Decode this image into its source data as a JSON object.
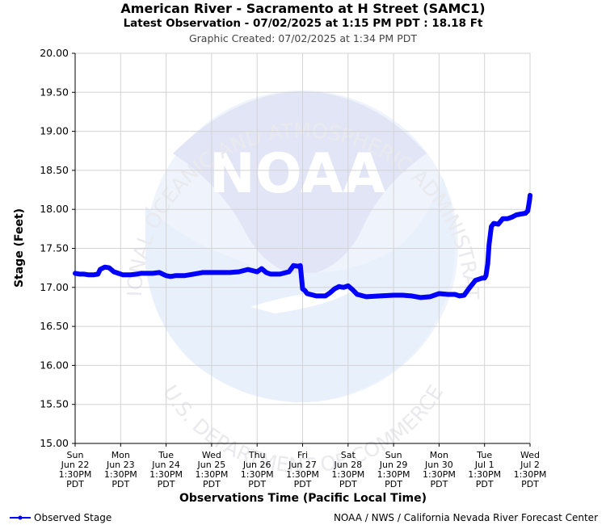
{
  "header": {
    "title": "American River - Sacramento at H Street (SAMC1)",
    "subtitle": "Latest Observation - 07/02/2025 at 1:15 PM PDT : 18.18 Ft",
    "created": "Graphic Created: 07/02/2025 at 1:34 PM PDT"
  },
  "watermark": {
    "logo_text": "NOAA",
    "top_arc": "NATIONAL OCEANIC AND ATMOSPHERIC ADMINISTRATION",
    "bottom_arc": "U.S. DEPARTMENT OF COMMERCE"
  },
  "legend": {
    "label": "Observed Stage",
    "color": "#0000ff"
  },
  "credit": "NOAA / NWS / California Nevada River Forecast Center",
  "chart_data": {
    "type": "line",
    "title": "American River - Sacramento at H Street (SAMC1)",
    "xlabel": "Observations Time (Pacific Local Time)",
    "ylabel": "Stage (Feet)",
    "ylim": [
      15.0,
      20.0
    ],
    "yticks": [
      "15.00",
      "15.50",
      "16.00",
      "16.50",
      "17.00",
      "17.50",
      "18.00",
      "18.50",
      "19.00",
      "19.50",
      "20.00"
    ],
    "xlim": [
      0,
      10
    ],
    "xticks": [
      {
        "x": 0,
        "lines": [
          "Sun",
          "Jun 22",
          "1:30PM",
          "PDT"
        ]
      },
      {
        "x": 1,
        "lines": [
          "Mon",
          "Jun 23",
          "1:30PM",
          "PDT"
        ]
      },
      {
        "x": 2,
        "lines": [
          "Tue",
          "Jun 24",
          "1:30PM",
          "PDT"
        ]
      },
      {
        "x": 3,
        "lines": [
          "Wed",
          "Jun 25",
          "1:30PM",
          "PDT"
        ]
      },
      {
        "x": 4,
        "lines": [
          "Thu",
          "Jun 26",
          "1:30PM",
          "PDT"
        ]
      },
      {
        "x": 5,
        "lines": [
          "Fri",
          "Jun 27",
          "1:30PM",
          "PDT"
        ]
      },
      {
        "x": 6,
        "lines": [
          "Sat",
          "Jun 28",
          "1:30PM",
          "PDT"
        ]
      },
      {
        "x": 7,
        "lines": [
          "Sun",
          "Jun 29",
          "1:30PM",
          "PDT"
        ]
      },
      {
        "x": 8,
        "lines": [
          "Mon",
          "Jun 30",
          "1:30PM",
          "PDT"
        ]
      },
      {
        "x": 9,
        "lines": [
          "Tue",
          "Jul 1",
          "1:30PM",
          "PDT"
        ]
      },
      {
        "x": 10,
        "lines": [
          "Wed",
          "Jul 2",
          "1:30PM",
          "PDT"
        ]
      }
    ],
    "grid": true,
    "legend_position": "bottom-left",
    "series": [
      {
        "name": "Observed Stage",
        "color": "#0000ff",
        "x": [
          0.0,
          0.1,
          0.2,
          0.3,
          0.4,
          0.5,
          0.55,
          0.65,
          0.75,
          0.85,
          0.95,
          1.05,
          1.2,
          1.35,
          1.45,
          1.55,
          1.7,
          1.85,
          2.0,
          2.1,
          2.2,
          2.4,
          2.6,
          2.8,
          3.0,
          3.2,
          3.4,
          3.6,
          3.8,
          4.0,
          4.1,
          4.2,
          4.3,
          4.5,
          4.7,
          4.8,
          4.9,
          4.95,
          5.0,
          5.05,
          5.1,
          5.3,
          5.4,
          5.5,
          5.6,
          5.7,
          5.8,
          5.9,
          6.0,
          6.1,
          6.2,
          6.4,
          6.7,
          7.0,
          7.2,
          7.4,
          7.6,
          7.8,
          8.0,
          8.2,
          8.35,
          8.45,
          8.55,
          8.65,
          8.8,
          8.9,
          8.95,
          9.0,
          9.03,
          9.07,
          9.1,
          9.15,
          9.2,
          9.3,
          9.4,
          9.5,
          9.6,
          9.7,
          9.8,
          9.9,
          9.95,
          9.97,
          9.99,
          10.0
        ],
        "y": [
          17.18,
          17.17,
          17.17,
          17.16,
          17.16,
          17.17,
          17.23,
          17.26,
          17.25,
          17.2,
          17.18,
          17.16,
          17.16,
          17.17,
          17.18,
          17.18,
          17.18,
          17.19,
          17.15,
          17.14,
          17.15,
          17.15,
          17.17,
          17.19,
          17.19,
          17.19,
          17.19,
          17.2,
          17.23,
          17.2,
          17.24,
          17.19,
          17.17,
          17.17,
          17.2,
          17.28,
          17.27,
          17.28,
          16.98,
          16.96,
          16.92,
          16.89,
          16.89,
          16.89,
          16.93,
          16.98,
          17.01,
          17.0,
          17.02,
          16.97,
          16.91,
          16.88,
          16.89,
          16.9,
          16.9,
          16.89,
          16.87,
          16.88,
          16.92,
          16.91,
          16.91,
          16.89,
          16.9,
          16.98,
          17.09,
          17.11,
          17.12,
          17.12,
          17.15,
          17.3,
          17.55,
          17.78,
          17.82,
          17.81,
          17.88,
          17.88,
          17.9,
          17.93,
          17.94,
          17.95,
          17.98,
          18.05,
          18.12,
          18.18
        ]
      }
    ]
  }
}
